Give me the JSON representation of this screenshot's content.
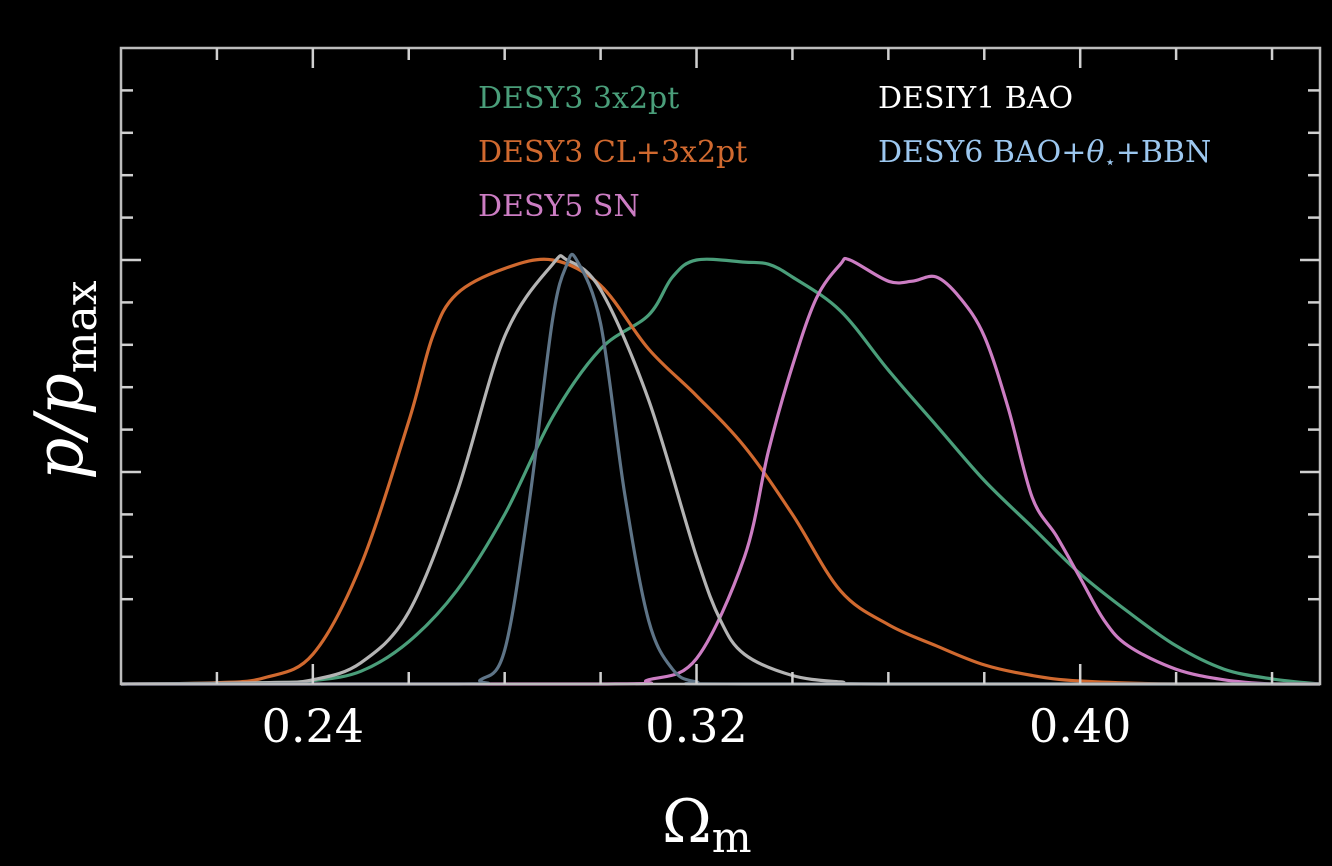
{
  "chart_data": {
    "type": "line",
    "xlabel": "Ω",
    "xlabel_sub": "m",
    "ylabel": "p/p",
    "ylabel_sub": "max",
    "xlim": [
      0.2,
      0.45
    ],
    "ylim": [
      0,
      1.0
    ],
    "x_ticks": [
      0.24,
      0.32,
      0.4
    ],
    "x_tick_labels": [
      "0.24",
      "0.32",
      "0.40"
    ],
    "legend_position": "top",
    "series": [
      {
        "name": "DESY3 3x2pt",
        "color": "#4a9e7a",
        "points": [
          [
            0.2,
            0
          ],
          [
            0.23,
            0.003
          ],
          [
            0.24,
            0.008
          ],
          [
            0.25,
            0.03
          ],
          [
            0.26,
            0.1
          ],
          [
            0.27,
            0.22
          ],
          [
            0.28,
            0.4
          ],
          [
            0.29,
            0.63
          ],
          [
            0.3,
            0.79
          ],
          [
            0.31,
            0.87
          ],
          [
            0.315,
            0.96
          ],
          [
            0.32,
            1.0
          ],
          [
            0.33,
            0.995
          ],
          [
            0.335,
            0.99
          ],
          [
            0.34,
            0.96
          ],
          [
            0.35,
            0.88
          ],
          [
            0.36,
            0.74
          ],
          [
            0.37,
            0.61
          ],
          [
            0.38,
            0.48
          ],
          [
            0.39,
            0.37
          ],
          [
            0.4,
            0.26
          ],
          [
            0.41,
            0.17
          ],
          [
            0.42,
            0.09
          ],
          [
            0.43,
            0.035
          ],
          [
            0.44,
            0.012
          ],
          [
            0.45,
            0.0
          ]
        ]
      },
      {
        "name": "DESY3 CL+3x2pt",
        "color": "#d0692f",
        "points": [
          [
            0.2,
            0
          ],
          [
            0.22,
            0.003
          ],
          [
            0.23,
            0.015
          ],
          [
            0.24,
            0.07
          ],
          [
            0.25,
            0.28
          ],
          [
            0.26,
            0.62
          ],
          [
            0.265,
            0.82
          ],
          [
            0.27,
            0.92
          ],
          [
            0.28,
            0.98
          ],
          [
            0.29,
            1.0
          ],
          [
            0.3,
            0.94
          ],
          [
            0.31,
            0.79
          ],
          [
            0.32,
            0.68
          ],
          [
            0.33,
            0.56
          ],
          [
            0.34,
            0.4
          ],
          [
            0.35,
            0.22
          ],
          [
            0.36,
            0.14
          ],
          [
            0.37,
            0.09
          ],
          [
            0.38,
            0.045
          ],
          [
            0.39,
            0.02
          ],
          [
            0.4,
            0.007
          ],
          [
            0.42,
            0.0
          ],
          [
            0.45,
            0.0
          ]
        ]
      },
      {
        "name": "DESY5 SN",
        "color": "#cc7dc3",
        "points": [
          [
            0.2,
            0
          ],
          [
            0.3,
            0
          ],
          [
            0.31,
            0.01
          ],
          [
            0.32,
            0.06
          ],
          [
            0.33,
            0.3
          ],
          [
            0.335,
            0.55
          ],
          [
            0.34,
            0.75
          ],
          [
            0.345,
            0.91
          ],
          [
            0.35,
            0.99
          ],
          [
            0.352,
            1.0
          ],
          [
            0.36,
            0.95
          ],
          [
            0.365,
            0.95
          ],
          [
            0.37,
            0.96
          ],
          [
            0.375,
            0.91
          ],
          [
            0.38,
            0.82
          ],
          [
            0.385,
            0.65
          ],
          [
            0.39,
            0.44
          ],
          [
            0.395,
            0.35
          ],
          [
            0.4,
            0.25
          ],
          [
            0.405,
            0.15
          ],
          [
            0.41,
            0.09
          ],
          [
            0.42,
            0.035
          ],
          [
            0.43,
            0.01
          ],
          [
            0.44,
            0.0
          ],
          [
            0.45,
            0.0
          ]
        ]
      },
      {
        "name": "DESIY1 BAO",
        "color": "#b4b4b4",
        "points": [
          [
            0.2,
            0
          ],
          [
            0.23,
            0.003
          ],
          [
            0.24,
            0.01
          ],
          [
            0.25,
            0.05
          ],
          [
            0.26,
            0.17
          ],
          [
            0.27,
            0.45
          ],
          [
            0.28,
            0.82
          ],
          [
            0.29,
            0.99
          ],
          [
            0.293,
            1.0
          ],
          [
            0.3,
            0.93
          ],
          [
            0.31,
            0.67
          ],
          [
            0.32,
            0.3
          ],
          [
            0.325,
            0.15
          ],
          [
            0.33,
            0.07
          ],
          [
            0.34,
            0.02
          ],
          [
            0.35,
            0.005
          ],
          [
            0.36,
            0.0
          ],
          [
            0.45,
            0.0
          ]
        ]
      },
      {
        "name": "DESY6 BAO+θ⋆+BBN",
        "color": "#5e7487",
        "points": [
          [
            0.2,
            0
          ],
          [
            0.27,
            0
          ],
          [
            0.275,
            0.01
          ],
          [
            0.28,
            0.08
          ],
          [
            0.285,
            0.42
          ],
          [
            0.29,
            0.86
          ],
          [
            0.293,
            0.99
          ],
          [
            0.295,
            1.0
          ],
          [
            0.3,
            0.85
          ],
          [
            0.305,
            0.45
          ],
          [
            0.31,
            0.15
          ],
          [
            0.315,
            0.035
          ],
          [
            0.32,
            0.005
          ],
          [
            0.33,
            0.0
          ],
          [
            0.45,
            0.0
          ]
        ]
      }
    ]
  },
  "legend": {
    "left": [
      {
        "text": "DESY3 3x2pt",
        "color": "#4a9e7a"
      },
      {
        "text": "DESY3 CL+3x2pt",
        "color": "#d0692f"
      },
      {
        "text": "DESY5 SN",
        "color": "#cc7dc3"
      }
    ],
    "right": [
      {
        "text": "DESIY1 BAO",
        "color": "#ffffff"
      },
      {
        "text_prefix": "DESY6 BAO+",
        "text_theta": "θ",
        "text_star": "⋆",
        "text_suffix": "+BBN",
        "color": "#9cc7ef"
      }
    ]
  }
}
